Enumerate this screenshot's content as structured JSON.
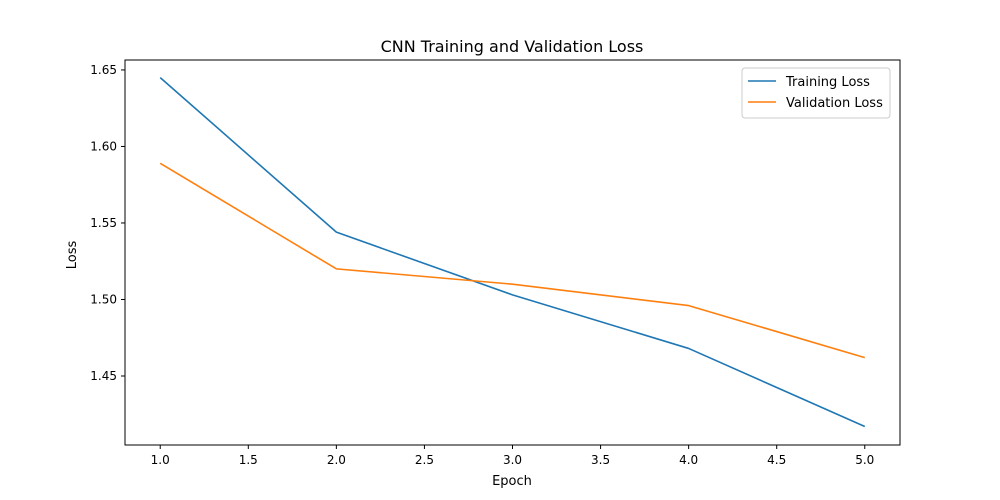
{
  "chart_data": {
    "type": "line",
    "title": "CNN Training and Validation Loss",
    "xlabel": "Epoch",
    "ylabel": "Loss",
    "x": [
      1,
      2,
      3,
      4,
      5
    ],
    "xlim": [
      0.8,
      5.2
    ],
    "ylim": [
      1.4049,
      1.6565
    ],
    "xticks": [
      1.0,
      1.5,
      2.0,
      2.5,
      3.0,
      3.5,
      4.0,
      4.5,
      5.0
    ],
    "xtick_labels": [
      "1.0",
      "1.5",
      "2.0",
      "2.5",
      "3.0",
      "3.5",
      "4.0",
      "4.5",
      "5.0"
    ],
    "yticks": [
      1.45,
      1.5,
      1.55,
      1.6,
      1.65
    ],
    "ytick_labels": [
      "1.45",
      "1.50",
      "1.55",
      "1.60",
      "1.65"
    ],
    "grid": false,
    "legend_position": "top-right",
    "series": [
      {
        "name": "Training Loss",
        "color": "#1f77b4",
        "values": [
          1.645,
          1.544,
          1.503,
          1.468,
          1.417
        ]
      },
      {
        "name": "Validation Loss",
        "color": "#ff7f0e",
        "values": [
          1.589,
          1.52,
          1.51,
          1.496,
          1.462
        ]
      }
    ]
  }
}
